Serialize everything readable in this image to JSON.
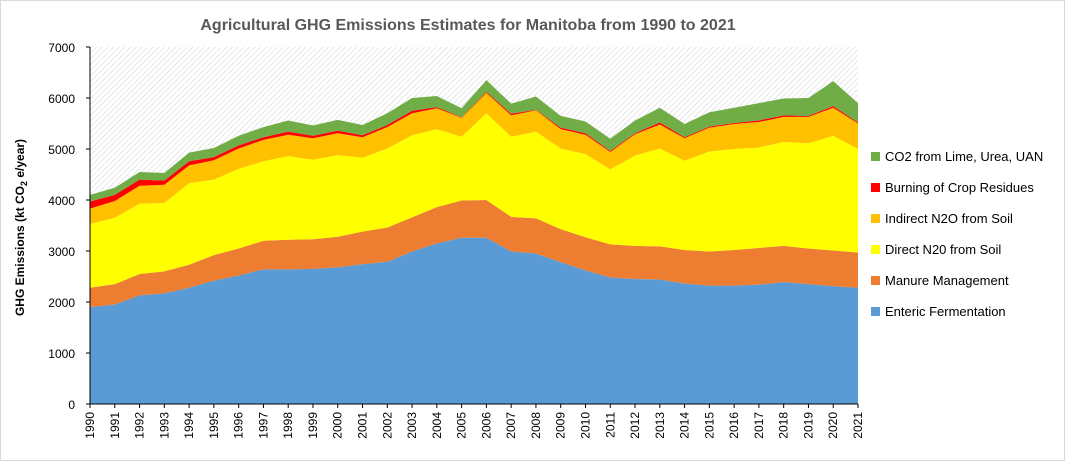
{
  "chart_data": {
    "type": "area",
    "stacked": true,
    "title": "Agricultural GHG Emissions Estimates for Manitoba from 1990 to 2021",
    "ylabel": "GHG Emissions (kt CO2 e/year)",
    "ylabel_main": "GHG Emissions (kt CO",
    "ylabel_sub": "2",
    "ylabel_tail": " e/year)",
    "xlabel": "",
    "ylim": [
      0,
      7000
    ],
    "y_ticks": [
      "0",
      "1000",
      "2000",
      "3000",
      "4000",
      "5000",
      "6000",
      "7000"
    ],
    "y_tick_values": [
      0,
      1000,
      2000,
      3000,
      4000,
      5000,
      6000,
      7000
    ],
    "grid": false,
    "plot_background": "diagonal-hatch",
    "legend_position": "right",
    "categories": [
      "1990",
      "1991",
      "1992",
      "1993",
      "1994",
      "1995",
      "1996",
      "1997",
      "1998",
      "1999",
      "2000",
      "2001",
      "2002",
      "2003",
      "2004",
      "2005",
      "2006",
      "2007",
      "2008",
      "2009",
      "2010",
      "2011",
      "2012",
      "2013",
      "2014",
      "2015",
      "2016",
      "2017",
      "2018",
      "2019",
      "2020",
      "2021"
    ],
    "series": [
      {
        "name": "Enteric Fermentation",
        "color": "#5b9bd5",
        "values": [
          1900,
          1950,
          2130,
          2170,
          2280,
          2420,
          2520,
          2640,
          2640,
          2650,
          2680,
          2740,
          2790,
          2990,
          3150,
          3260,
          3260,
          2990,
          2950,
          2780,
          2620,
          2480,
          2450,
          2440,
          2360,
          2320,
          2320,
          2340,
          2390,
          2350,
          2310,
          2280
        ]
      },
      {
        "name": "Manure Management",
        "color": "#ed7d31",
        "values": [
          380,
          400,
          420,
          430,
          450,
          500,
          530,
          560,
          580,
          580,
          600,
          640,
          670,
          670,
          710,
          730,
          740,
          680,
          690,
          650,
          650,
          650,
          650,
          650,
          660,
          670,
          700,
          720,
          710,
          700,
          700,
          690
        ]
      },
      {
        "name": "Direct N20 from Soil",
        "color": "#ffff00",
        "values": [
          1250,
          1300,
          1380,
          1340,
          1600,
          1480,
          1560,
          1560,
          1640,
          1560,
          1600,
          1450,
          1550,
          1610,
          1530,
          1250,
          1700,
          1570,
          1700,
          1580,
          1630,
          1470,
          1770,
          1920,
          1750,
          1960,
          1980,
          1970,
          2040,
          2060,
          2250,
          2030
        ]
      },
      {
        "name": "Indirect N2O from Soil",
        "color": "#ffc000",
        "values": [
          300,
          330,
          350,
          360,
          350,
          380,
          400,
          420,
          420,
          420,
          430,
          400,
          420,
          430,
          410,
          370,
          400,
          420,
          420,
          380,
          380,
          340,
          420,
          470,
          440,
          470,
          490,
          500,
          490,
          520,
          550,
          500
        ]
      },
      {
        "name": "Burning of Crop Residues",
        "color": "#ff0000",
        "values": [
          140,
          120,
          120,
          80,
          80,
          60,
          60,
          50,
          60,
          50,
          50,
          40,
          40,
          50,
          20,
          10,
          20,
          30,
          10,
          30,
          30,
          20,
          20,
          40,
          20,
          20,
          20,
          30,
          30,
          20,
          30,
          20
        ]
      },
      {
        "name": "CO2 from Lime, Urea, UAN",
        "color": "#70ad47",
        "values": [
          130,
          140,
          150,
          150,
          170,
          180,
          190,
          200,
          220,
          200,
          210,
          200,
          230,
          250,
          220,
          180,
          230,
          200,
          260,
          230,
          230,
          240,
          250,
          290,
          260,
          280,
          300,
          340,
          330,
          350,
          490,
          380
        ]
      }
    ]
  }
}
